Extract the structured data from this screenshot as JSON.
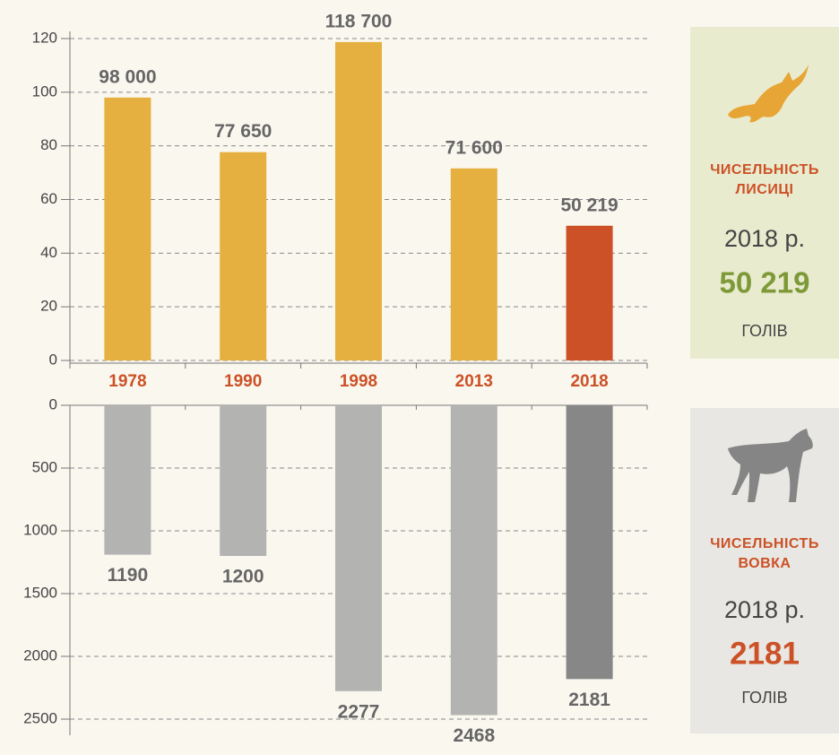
{
  "chart_data": [
    {
      "type": "bar",
      "categories": [
        "1978",
        "1990",
        "1998",
        "2013",
        "2018"
      ],
      "values": [
        98,
        77.65,
        118.7,
        71.6,
        50.219
      ],
      "value_labels": [
        "98 000",
        "77 650",
        "118 700",
        "71 600",
        "50 219"
      ],
      "colors": [
        "#e6b040",
        "#e6b040",
        "#e6b040",
        "#e6b040",
        "#cc5126"
      ],
      "ylim": [
        0,
        120
      ],
      "yticks": [
        0,
        20,
        40,
        60,
        80,
        100,
        120
      ],
      "grid": true
    },
    {
      "type": "bar",
      "inverted": true,
      "values": [
        1190,
        1200,
        2277,
        2468,
        2181
      ],
      "colors": [
        "#b3b3b1",
        "#b3b3b1",
        "#b3b3b1",
        "#b3b3b1",
        "#878787"
      ],
      "ylim": [
        0,
        2500
      ],
      "yticks": [
        0,
        500,
        1000,
        1500,
        2000,
        2500
      ],
      "grid": true
    }
  ],
  "panels": [
    {
      "title": [
        "ЧИСЕЛЬНІСТЬ",
        "ЛИСИЦІ"
      ],
      "year": "2018 р.",
      "number": "50 219",
      "unit": "ГОЛІВ"
    },
    {
      "title": [
        "ЧИСЕЛЬНІСТЬ",
        "ВОВКА"
      ],
      "year": "2018 р.",
      "number": "2181",
      "unit": "ГОЛІВ"
    }
  ]
}
